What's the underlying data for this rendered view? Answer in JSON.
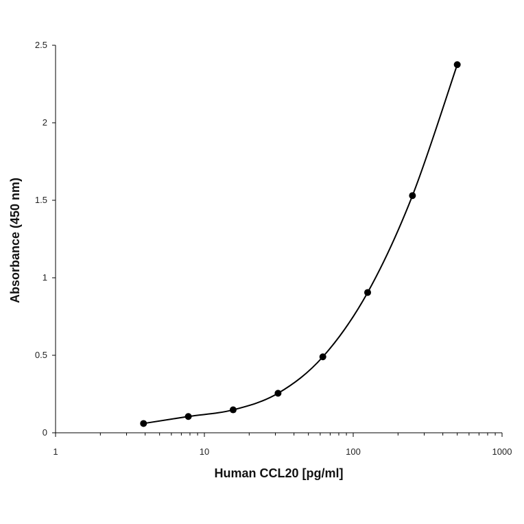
{
  "chart_data": {
    "type": "scatter",
    "xlabel": "Human CCL20 [pg/ml]",
    "ylabel": "Absorbance (450 nm)",
    "x_scale": "log",
    "xlim": [
      1,
      1000
    ],
    "ylim": [
      0,
      2.5
    ],
    "x_ticks": [
      "1",
      "10",
      "100",
      "1000"
    ],
    "y_ticks": [
      "0",
      "0.5",
      "1",
      "1.5",
      "2",
      "2.5"
    ],
    "grid": false,
    "legend": "none",
    "marker_color": "#000000",
    "line_color": "#000000",
    "series": [
      {
        "x": [
          3.9,
          7.8,
          15.6,
          31.25,
          62.5,
          125,
          250,
          500
        ],
        "y": [
          0.06,
          0.105,
          0.148,
          0.255,
          0.49,
          0.905,
          1.53,
          2.375
        ]
      }
    ]
  }
}
